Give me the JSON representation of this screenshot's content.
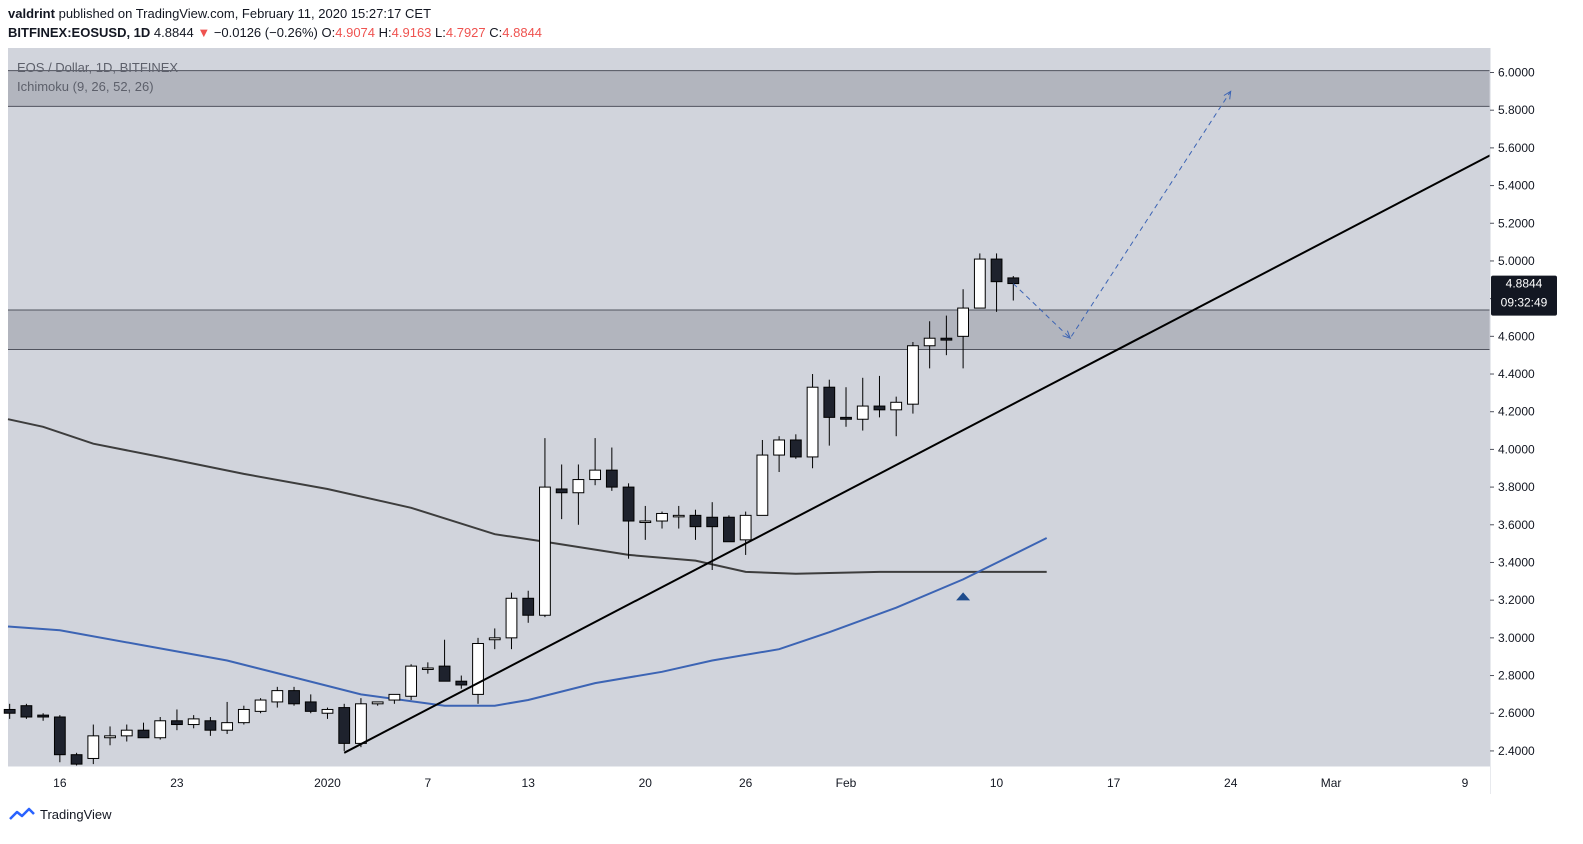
{
  "header": {
    "author": "valdrint",
    "published_text": "published on TradingView.com, February 11, 2020 15:27:17 CET",
    "symbol": "BITFINEX:EOSUSD, 1D",
    "last": "4.8844",
    "change_arrow": "▼",
    "change": "−0.0126 (−0.26%)",
    "open_label": "O:",
    "open": "4.9074",
    "high_label": "H:",
    "high": "4.9163",
    "low_label": "L:",
    "low": "4.7927",
    "close_label": "C:",
    "close": "4.8844"
  },
  "legend": {
    "title": "EOS / Dollar, 1D, BITFINEX",
    "indicator": "Ichimoku (9, 26, 52, 26)"
  },
  "price_badge": {
    "price": "4.8844",
    "countdown": "09:32:49"
  },
  "footer": {
    "brand": "TradingView"
  },
  "colors": {
    "background": "#d1d4dc",
    "zone": "#b2b5be",
    "bull_body": "#ffffff",
    "bear_body": "#1e222d",
    "ma_dark": "#3d3d3d",
    "ma_blue": "#3c64b4",
    "trendline": "#000000",
    "projection": "#3c64b4",
    "badge": "#131722",
    "change_negative": "#ef5350"
  },
  "chart_data": {
    "type": "candlestick",
    "y_ticks": [
      "6.0000",
      "5.8000",
      "5.6000",
      "5.4000",
      "5.2000",
      "5.0000",
      "4.8000",
      "4.6000",
      "4.4000",
      "4.2000",
      "4.0000",
      "3.8000",
      "3.6000",
      "3.4000",
      "3.2000",
      "3.0000",
      "2.8000",
      "2.6000",
      "2.4000"
    ],
    "ylim": [
      2.32,
      6.13
    ],
    "x_ticks": [
      {
        "label": "16",
        "day": -16
      },
      {
        "label": "23",
        "day": -9
      },
      {
        "label": "2020",
        "day": 0
      },
      {
        "label": "7",
        "day": 6
      },
      {
        "label": "13",
        "day": 12
      },
      {
        "label": "20",
        "day": 19
      },
      {
        "label": "26",
        "day": 25
      },
      {
        "label": "Feb",
        "day": 31
      },
      {
        "label": "10",
        "day": 40
      },
      {
        "label": "17",
        "day": 47
      },
      {
        "label": "24",
        "day": 54
      },
      {
        "label": "Mar",
        "day": 60
      },
      {
        "label": "9",
        "day": 68
      }
    ],
    "xlim": [
      -19.1,
      69.5
    ],
    "zones": [
      {
        "low": 5.82,
        "high": 6.01
      },
      {
        "low": 4.53,
        "high": 4.74
      }
    ],
    "candles": [
      {
        "day": -19,
        "o": 2.62,
        "h": 2.65,
        "l": 2.57,
        "c": 2.6
      },
      {
        "day": -18,
        "o": 2.64,
        "h": 2.65,
        "l": 2.57,
        "c": 2.58
      },
      {
        "day": -17,
        "o": 2.59,
        "h": 2.6,
        "l": 2.56,
        "c": 2.58
      },
      {
        "day": -16,
        "o": 2.58,
        "h": 2.59,
        "l": 2.34,
        "c": 2.38
      },
      {
        "day": -15,
        "o": 2.38,
        "h": 2.39,
        "l": 2.32,
        "c": 2.33
      },
      {
        "day": -14,
        "o": 2.36,
        "h": 2.54,
        "l": 2.33,
        "c": 2.48
      },
      {
        "day": -13,
        "o": 2.47,
        "h": 2.53,
        "l": 2.43,
        "c": 2.48
      },
      {
        "day": -12,
        "o": 2.48,
        "h": 2.54,
        "l": 2.45,
        "c": 2.51
      },
      {
        "day": -11,
        "o": 2.51,
        "h": 2.55,
        "l": 2.47,
        "c": 2.47
      },
      {
        "day": -10,
        "o": 2.47,
        "h": 2.58,
        "l": 2.46,
        "c": 2.56
      },
      {
        "day": -9,
        "o": 2.56,
        "h": 2.62,
        "l": 2.51,
        "c": 2.54
      },
      {
        "day": -8,
        "o": 2.54,
        "h": 2.59,
        "l": 2.52,
        "c": 2.57
      },
      {
        "day": -7,
        "o": 2.56,
        "h": 2.58,
        "l": 2.48,
        "c": 2.51
      },
      {
        "day": -6,
        "o": 2.51,
        "h": 2.66,
        "l": 2.49,
        "c": 2.55
      },
      {
        "day": -5,
        "o": 2.55,
        "h": 2.64,
        "l": 2.54,
        "c": 2.62
      },
      {
        "day": -4,
        "o": 2.61,
        "h": 2.68,
        "l": 2.6,
        "c": 2.67
      },
      {
        "day": -3,
        "o": 2.66,
        "h": 2.74,
        "l": 2.63,
        "c": 2.72
      },
      {
        "day": -2,
        "o": 2.72,
        "h": 2.74,
        "l": 2.64,
        "c": 2.65
      },
      {
        "day": -1,
        "o": 2.66,
        "h": 2.7,
        "l": 2.6,
        "c": 2.61
      },
      {
        "day": 0,
        "o": 2.6,
        "h": 2.63,
        "l": 2.57,
        "c": 2.62
      },
      {
        "day": 1,
        "o": 2.63,
        "h": 2.65,
        "l": 2.4,
        "c": 2.44
      },
      {
        "day": 2,
        "o": 2.44,
        "h": 2.68,
        "l": 2.42,
        "c": 2.65
      },
      {
        "day": 3,
        "o": 2.65,
        "h": 2.66,
        "l": 2.64,
        "c": 2.66
      },
      {
        "day": 4,
        "o": 2.67,
        "h": 2.7,
        "l": 2.65,
        "c": 2.7
      },
      {
        "day": 5,
        "o": 2.69,
        "h": 2.86,
        "l": 2.67,
        "c": 2.85
      },
      {
        "day": 6,
        "o": 2.84,
        "h": 2.87,
        "l": 2.81,
        "c": 2.84
      },
      {
        "day": 7,
        "o": 2.85,
        "h": 2.99,
        "l": 2.77,
        "c": 2.77
      },
      {
        "day": 8,
        "o": 2.77,
        "h": 2.8,
        "l": 2.73,
        "c": 2.75
      },
      {
        "day": 9,
        "o": 2.7,
        "h": 3.0,
        "l": 2.65,
        "c": 2.97
      },
      {
        "day": 10,
        "o": 2.99,
        "h": 3.05,
        "l": 2.94,
        "c": 3.0
      },
      {
        "day": 11,
        "o": 3.0,
        "h": 3.24,
        "l": 2.94,
        "c": 3.21
      },
      {
        "day": 12,
        "o": 3.21,
        "h": 3.25,
        "l": 3.08,
        "c": 3.12
      },
      {
        "day": 13,
        "o": 3.12,
        "h": 4.06,
        "l": 3.11,
        "c": 3.8
      },
      {
        "day": 14,
        "o": 3.79,
        "h": 3.92,
        "l": 3.63,
        "c": 3.77
      },
      {
        "day": 15,
        "o": 3.77,
        "h": 3.92,
        "l": 3.6,
        "c": 3.84
      },
      {
        "day": 16,
        "o": 3.84,
        "h": 4.06,
        "l": 3.81,
        "c": 3.89
      },
      {
        "day": 17,
        "o": 3.89,
        "h": 4.01,
        "l": 3.78,
        "c": 3.8
      },
      {
        "day": 18,
        "o": 3.8,
        "h": 3.82,
        "l": 3.42,
        "c": 3.62
      },
      {
        "day": 19,
        "o": 3.62,
        "h": 3.7,
        "l": 3.52,
        "c": 3.62
      },
      {
        "day": 20,
        "o": 3.62,
        "h": 3.67,
        "l": 3.58,
        "c": 3.66
      },
      {
        "day": 21,
        "o": 3.65,
        "h": 3.7,
        "l": 3.58,
        "c": 3.65
      },
      {
        "day": 22,
        "o": 3.65,
        "h": 3.68,
        "l": 3.52,
        "c": 3.59
      },
      {
        "day": 23,
        "o": 3.64,
        "h": 3.72,
        "l": 3.36,
        "c": 3.59
      },
      {
        "day": 24,
        "o": 3.64,
        "h": 3.65,
        "l": 3.52,
        "c": 3.51
      },
      {
        "day": 25,
        "o": 3.52,
        "h": 3.67,
        "l": 3.44,
        "c": 3.65
      },
      {
        "day": 26,
        "o": 3.65,
        "h": 4.05,
        "l": 3.65,
        "c": 3.97
      },
      {
        "day": 27,
        "o": 3.97,
        "h": 4.07,
        "l": 3.88,
        "c": 4.05
      },
      {
        "day": 28,
        "o": 4.05,
        "h": 4.08,
        "l": 3.95,
        "c": 3.96
      },
      {
        "day": 29,
        "o": 3.96,
        "h": 4.4,
        "l": 3.9,
        "c": 4.33
      },
      {
        "day": 30,
        "o": 4.33,
        "h": 4.37,
        "l": 4.02,
        "c": 4.17
      },
      {
        "day": 31,
        "o": 4.17,
        "h": 4.33,
        "l": 4.12,
        "c": 4.16
      },
      {
        "day": 32,
        "o": 4.16,
        "h": 4.38,
        "l": 4.1,
        "c": 4.23
      },
      {
        "day": 33,
        "o": 4.23,
        "h": 4.39,
        "l": 4.17,
        "c": 4.21
      },
      {
        "day": 34,
        "o": 4.21,
        "h": 4.28,
        "l": 4.07,
        "c": 4.25
      },
      {
        "day": 35,
        "o": 4.24,
        "h": 4.57,
        "l": 4.19,
        "c": 4.55
      },
      {
        "day": 36,
        "o": 4.55,
        "h": 4.68,
        "l": 4.43,
        "c": 4.59
      },
      {
        "day": 37,
        "o": 4.59,
        "h": 4.71,
        "l": 4.5,
        "c": 4.58
      },
      {
        "day": 38,
        "o": 4.6,
        "h": 4.85,
        "l": 4.43,
        "c": 4.75
      },
      {
        "day": 39,
        "o": 4.75,
        "h": 5.04,
        "l": 4.75,
        "c": 5.01
      },
      {
        "day": 40,
        "o": 5.01,
        "h": 5.04,
        "l": 4.73,
        "c": 4.89
      },
      {
        "day": 41,
        "o": 4.91,
        "h": 4.92,
        "l": 4.79,
        "c": 4.88
      }
    ],
    "ma_dark": [
      [
        -19.1,
        4.16
      ],
      [
        -17,
        4.12
      ],
      [
        -14,
        4.03
      ],
      [
        -10,
        3.96
      ],
      [
        -5,
        3.87
      ],
      [
        0,
        3.79
      ],
      [
        5,
        3.69
      ],
      [
        10,
        3.55
      ],
      [
        13,
        3.51
      ],
      [
        18,
        3.44
      ],
      [
        22,
        3.41
      ],
      [
        25,
        3.35
      ],
      [
        28,
        3.34
      ],
      [
        33,
        3.35
      ],
      [
        38,
        3.35
      ],
      [
        43,
        3.35
      ]
    ],
    "ma_blue": [
      [
        -19.1,
        3.06
      ],
      [
        -16,
        3.04
      ],
      [
        -11,
        2.96
      ],
      [
        -6,
        2.88
      ],
      [
        -2,
        2.79
      ],
      [
        2,
        2.7
      ],
      [
        7,
        2.64
      ],
      [
        10,
        2.64
      ],
      [
        12,
        2.67
      ],
      [
        16,
        2.76
      ],
      [
        20,
        2.82
      ],
      [
        23,
        2.88
      ],
      [
        27,
        2.94
      ],
      [
        30,
        3.03
      ],
      [
        34,
        3.16
      ],
      [
        38,
        3.31
      ],
      [
        43,
        3.53
      ]
    ],
    "trendline": [
      [
        1,
        2.39
      ],
      [
        69.5,
        5.56
      ]
    ],
    "projection": [
      [
        41,
        4.88
      ],
      [
        44.4,
        4.59
      ],
      [
        54,
        5.9
      ]
    ],
    "cloud_marker": {
      "day": 38,
      "value": 3.22
    }
  }
}
